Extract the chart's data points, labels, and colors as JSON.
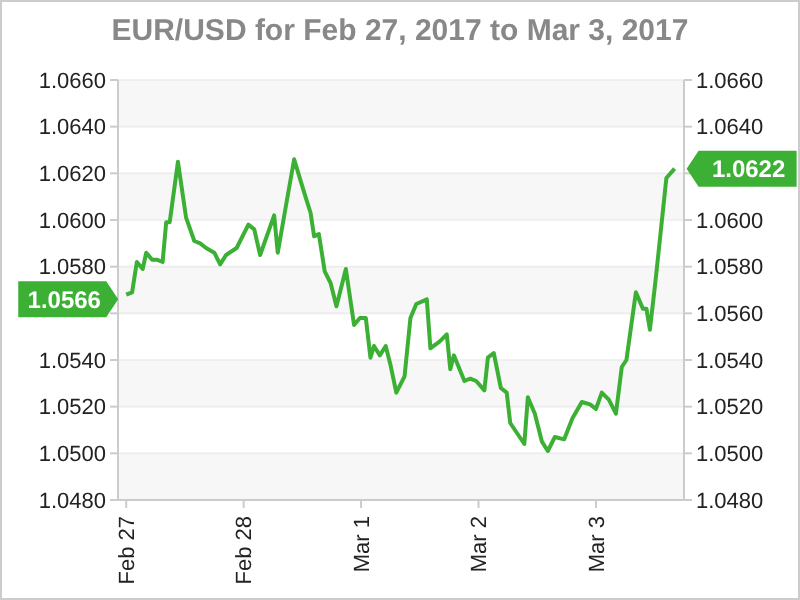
{
  "chart_data": {
    "type": "line",
    "title": "EUR/USD for Feb 27, 2017 to Mar 3, 2017",
    "x": [
      "2017-02-27T00:00",
      "2017-02-27T01:12",
      "2017-02-27T02:10",
      "2017-02-27T03:22",
      "2017-02-27T04:05",
      "2017-02-27T05:17",
      "2017-02-27T06:14",
      "2017-02-27T07:26",
      "2017-02-27T08:10",
      "2017-02-27T08:53",
      "2017-02-27T10:34",
      "2017-02-27T12:14",
      "2017-02-27T13:55",
      "2017-02-27T15:07",
      "2017-02-27T16:19",
      "2017-02-27T18:00",
      "2017-02-27T19:12",
      "2017-02-27T20:24",
      "2017-02-27T22:34",
      "2017-02-28T00:58",
      "2017-02-28T02:10",
      "2017-02-28T03:22",
      "2017-02-28T06:14",
      "2017-02-28T06:58",
      "2017-02-28T08:38",
      "2017-02-28T10:19",
      "2017-02-28T12:29",
      "2017-02-28T13:41",
      "2017-02-28T14:24",
      "2017-02-28T15:22",
      "2017-02-28T16:34",
      "2017-02-28T17:46",
      "2017-02-28T18:58",
      "2017-02-28T20:10",
      "2017-02-28T20:53",
      "2017-02-28T22:34",
      "2017-02-28T23:46",
      "2017-03-01T00:58",
      "2017-03-01T01:55",
      "2017-03-01T02:38",
      "2017-03-01T03:50",
      "2017-03-01T05:02",
      "2017-03-01T06:00",
      "2017-03-01T07:12",
      "2017-03-01T08:53",
      "2017-03-01T10:05",
      "2017-03-01T11:17",
      "2017-03-01T13:26",
      "2017-03-01T14:10",
      "2017-03-01T16:05",
      "2017-03-01T17:31",
      "2017-03-01T18:14",
      "2017-03-01T18:58",
      "2017-03-01T21:07",
      "2017-03-01T22:19",
      "2017-03-01T23:31",
      "2017-03-02T01:12",
      "2017-03-02T01:55",
      "2017-03-02T03:07",
      "2017-03-02T04:34",
      "2017-03-02T05:46",
      "2017-03-02T06:29",
      "2017-03-02T09:22",
      "2017-03-02T10:05",
      "2017-03-02T11:31",
      "2017-03-02T12:58",
      "2017-03-02T14:10",
      "2017-03-02T15:36",
      "2017-03-02T17:31",
      "2017-03-02T19:12",
      "2017-03-02T21:07",
      "2017-03-02T22:48",
      "2017-03-03T00:00",
      "2017-03-03T01:12",
      "2017-03-03T02:38",
      "2017-03-03T04:05",
      "2017-03-03T05:17",
      "2017-03-03T06:14",
      "2017-03-03T08:10",
      "2017-03-03T09:36",
      "2017-03-03T10:19",
      "2017-03-03T11:02",
      "2017-03-03T12:14",
      "2017-03-03T14:24",
      "2017-03-03T16:05"
    ],
    "series": [
      {
        "color": "#3cb034",
        "values": [
          1.0568,
          1.0569,
          1.0582,
          1.0579,
          1.0586,
          1.0583,
          1.0583,
          1.0582,
          1.0599,
          1.0599,
          1.0625,
          1.0601,
          1.0591,
          1.059,
          1.0588,
          1.0586,
          1.0581,
          1.0585,
          1.0588,
          1.0598,
          1.0596,
          1.0585,
          1.0602,
          1.0586,
          1.0606,
          1.0626,
          1.0611,
          1.0603,
          1.0593,
          1.0594,
          1.0578,
          1.0573,
          1.0563,
          1.0573,
          1.0579,
          1.0555,
          1.0558,
          1.0558,
          1.0541,
          1.0546,
          1.0542,
          1.0546,
          1.0538,
          1.0526,
          1.0533,
          1.0558,
          1.0564,
          1.0566,
          1.0545,
          1.0548,
          1.0551,
          1.0536,
          1.0542,
          1.0531,
          1.0532,
          1.0531,
          1.0527,
          1.0541,
          1.0543,
          1.0528,
          1.0526,
          1.0513,
          1.0504,
          1.0524,
          1.0517,
          1.0505,
          1.0501,
          1.0507,
          1.0506,
          1.0515,
          1.0522,
          1.0521,
          1.0519,
          1.0526,
          1.0523,
          1.0517,
          1.0537,
          1.054,
          1.0569,
          1.0562,
          1.0562,
          1.0553,
          1.0575,
          1.0618,
          1.0622
        ]
      }
    ],
    "xlim": [
      "2017-02-26T22:19",
      "2017-03-03T18:00"
    ],
    "xticks": [
      {
        "value": "2017-02-27",
        "label": "Feb 27"
      },
      {
        "value": "2017-02-28",
        "label": "Feb 28"
      },
      {
        "value": "2017-03-01",
        "label": "Mar 1"
      },
      {
        "value": "2017-03-02",
        "label": "Mar 2"
      },
      {
        "value": "2017-03-03",
        "label": "Mar 3"
      }
    ],
    "ylim": [
      1.048,
      1.066
    ],
    "yticks": [
      {
        "value": 1.048,
        "label": "1.0480"
      },
      {
        "value": 1.05,
        "label": "1.0500"
      },
      {
        "value": 1.052,
        "label": "1.0520"
      },
      {
        "value": 1.054,
        "label": "1.0540"
      },
      {
        "value": 1.056,
        "label": null
      },
      {
        "value": 1.058,
        "label": "1.0580"
      },
      {
        "value": 1.06,
        "label": "1.0600"
      },
      {
        "value": 1.062,
        "label": "1.0620"
      },
      {
        "value": 1.064,
        "label": "1.0640"
      },
      {
        "value": 1.066,
        "label": "1.0660"
      }
    ],
    "y2lim": [
      1.048,
      1.066
    ],
    "y2ticks": [
      {
        "value": 1.048,
        "label": "1.0480"
      },
      {
        "value": 1.05,
        "label": "1.0500"
      },
      {
        "value": 1.052,
        "label": "1.0520"
      },
      {
        "value": 1.054,
        "label": "1.0540"
      },
      {
        "value": 1.056,
        "label": "1.0560"
      },
      {
        "value": 1.058,
        "label": "1.0580"
      },
      {
        "value": 1.06,
        "label": "1.0600"
      },
      {
        "value": 1.062,
        "label": null
      },
      {
        "value": 1.064,
        "label": "1.0640"
      },
      {
        "value": 1.066,
        "label": "1.0660"
      }
    ],
    "grid": "y",
    "marker": "none",
    "line_style": "solid",
    "annotations": [
      {
        "text": "1.0566",
        "x": "2017-02-27T00:00",
        "y": 1.0566
      },
      {
        "text": "1.0622",
        "x": "2017-03-03T16:05",
        "y": 1.0622
      }
    ]
  }
}
